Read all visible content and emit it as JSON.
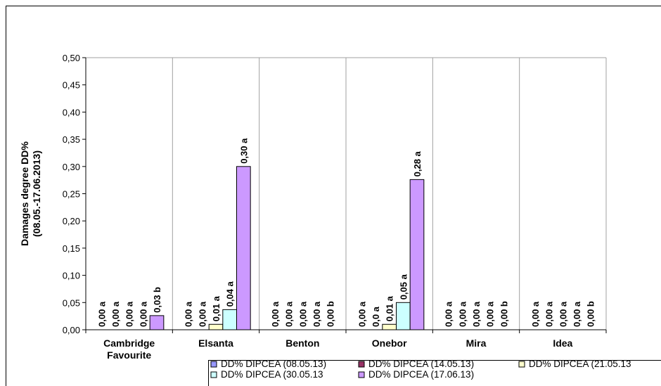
{
  "chart_data": {
    "type": "bar",
    "ylabel": [
      "Damages degree DD%",
      "(08.05.-17.06.2013)"
    ],
    "categories": [
      "Cambridge Favourite",
      "Elsanta",
      "Benton",
      "Onebor",
      "Mira",
      "Idea"
    ],
    "series": [
      {
        "name": "DD% DIPCEA (08.05.13)",
        "color": "#9999ff",
        "values": [
          0,
          0,
          0,
          0,
          0,
          0
        ],
        "value_labels": [
          "0,00 a",
          "0,00 a",
          "0,00 a",
          "0,00 a",
          "0,00 a",
          "0,00 a"
        ]
      },
      {
        "name": "DD% DIPCEA (14.05.13)",
        "color": "#993366",
        "values": [
          0,
          0,
          0,
          0,
          0,
          0
        ],
        "value_labels": [
          "0,00 a",
          "0,00 a",
          "0,00 a",
          "0,0 a",
          "0,00 a",
          "0,00 a"
        ]
      },
      {
        "name": "DD% DIPCEA (21.05.13",
        "color": "#ffffcc",
        "values": [
          0,
          0.01,
          0,
          0.01,
          0,
          0
        ],
        "value_labels": [
          "0,00 a",
          "0,01 a",
          "0,00 a",
          "0,01 a",
          "0,00 a",
          "0,00 a"
        ]
      },
      {
        "name": "DD% DIPCEA (30.05.13",
        "color": "#ccffff",
        "values": [
          0,
          0.037,
          0,
          0.05,
          0,
          0
        ],
        "value_labels": [
          "0,00 a",
          "0,04 a",
          "0,00 a",
          "0,05 a",
          "0,00 a",
          "0,00 a"
        ]
      },
      {
        "name": "DD% DIPCEA (17.06.13)",
        "color": "#cc99ff",
        "values": [
          0.026,
          0.3,
          0,
          0.276,
          0,
          0
        ],
        "value_labels": [
          "0,03 b",
          "0,30 a",
          "0,00 b",
          "0,28 a",
          "0,00 b",
          "0,00 b"
        ]
      }
    ],
    "ylim": [
      0,
      0.5
    ],
    "yticks": [
      {
        "value": 0,
        "label": "0,00"
      },
      {
        "value": 0.05,
        "label": "0,05"
      },
      {
        "value": 0.1,
        "label": "0,10"
      },
      {
        "value": 0.15,
        "label": "0,15"
      },
      {
        "value": 0.2,
        "label": "0,20"
      },
      {
        "value": 0.25,
        "label": "0,25"
      },
      {
        "value": 0.3,
        "label": "0,30"
      },
      {
        "value": 0.35,
        "label": "0,35"
      },
      {
        "value": 0.4,
        "label": "0,40"
      },
      {
        "value": 0.45,
        "label": "0,45"
      },
      {
        "value": 0.5,
        "label": "0,50"
      }
    ],
    "grid": true
  }
}
